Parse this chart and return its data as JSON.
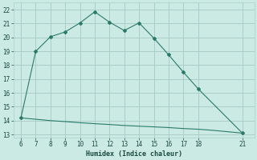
{
  "line1_x": [
    6,
    7,
    8,
    9,
    10,
    11,
    12,
    13,
    14,
    15,
    16,
    17,
    18,
    21
  ],
  "line1_y": [
    14.2,
    19.0,
    20.05,
    20.4,
    21.05,
    21.85,
    21.1,
    20.5,
    21.05,
    19.95,
    18.75,
    17.5,
    16.3,
    13.1
  ],
  "line2_x": [
    6,
    7,
    8,
    9,
    10,
    11,
    12,
    13,
    14,
    15,
    16,
    17,
    18,
    19,
    20,
    21
  ],
  "line2_y": [
    14.2,
    14.1,
    14.0,
    13.93,
    13.85,
    13.78,
    13.72,
    13.65,
    13.6,
    13.55,
    13.5,
    13.43,
    13.38,
    13.3,
    13.2,
    13.1
  ],
  "line_color": "#2a7a6a",
  "bg_color": "#cceae4",
  "grid_color": "#aacfc8",
  "xlabel": "Humidex (Indice chaleur)",
  "xlim": [
    5.5,
    21.8
  ],
  "ylim": [
    12.8,
    22.5
  ],
  "xticks": [
    6,
    7,
    8,
    9,
    10,
    11,
    12,
    13,
    14,
    15,
    16,
    17,
    18,
    21
  ],
  "yticks": [
    13,
    14,
    15,
    16,
    17,
    18,
    19,
    20,
    21,
    22
  ],
  "font_color": "#1a4a40"
}
